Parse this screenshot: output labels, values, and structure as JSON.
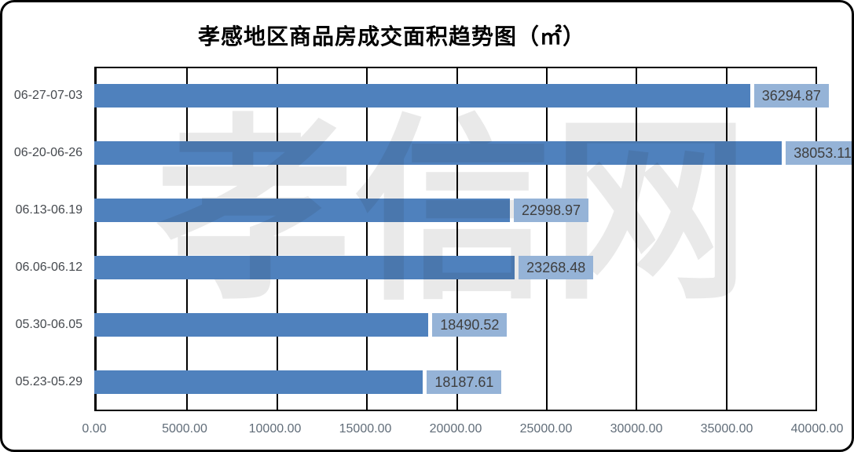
{
  "chart_data": {
    "type": "bar",
    "orientation": "horizontal",
    "title": "孝感地区商品房成交面积趋势图（㎡）",
    "watermark": "孝信网",
    "categories": [
      "06-27-07-03",
      "06-20-06-26",
      "06.13-06.19",
      "06.06-06.12",
      "05.30-06.05",
      "05.23-05.29"
    ],
    "values": [
      36294.87,
      38053.11,
      22998.97,
      23268.48,
      18490.52,
      18187.61
    ],
    "value_labels": [
      "36294.87",
      "38053.11",
      "22998.97",
      "23268.48",
      "18490.52",
      "18187.61"
    ],
    "x_ticks": [
      "0.00",
      "5000.00",
      "10000.00",
      "15000.00",
      "20000.00",
      "25000.00",
      "30000.00",
      "35000.00",
      "40000.00"
    ],
    "xlim": [
      0,
      40000
    ],
    "grid": "vertical",
    "legend": "none",
    "colors": {
      "bar": "#4f81bd",
      "value_box_fill": "#95b3d7",
      "value_text": "#3f3f3f",
      "gridline": "#000000",
      "category_label": "#45494e",
      "tick_label": "#616d79",
      "watermark_gray": "#e7e7e7"
    }
  }
}
